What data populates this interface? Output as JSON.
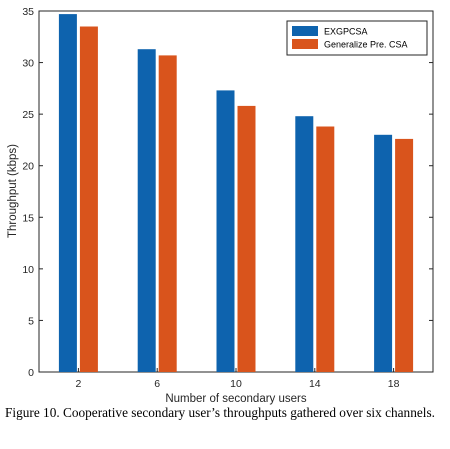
{
  "caption": "Figure 10. Cooperative secondary user’s throughputs gathered over six channels.",
  "chart_data": {
    "type": "bar",
    "title": "",
    "xlabel": "Number of secondary users",
    "ylabel": "Throughput (kbps)",
    "categories": [
      "2",
      "6",
      "10",
      "14",
      "18"
    ],
    "ylim": [
      0,
      35
    ],
    "yticks": [
      0,
      5,
      10,
      15,
      20,
      25,
      30,
      35
    ],
    "grid": false,
    "legend_position": "top-right",
    "series": [
      {
        "name": "EXGPCSA",
        "color": "#0E63AE",
        "values": [
          34.7,
          31.3,
          27.3,
          24.8,
          23.0
        ]
      },
      {
        "name": "Generalize Pre. CSA",
        "color": "#D9541C",
        "values": [
          33.5,
          30.7,
          25.8,
          23.8,
          22.6
        ]
      }
    ]
  }
}
